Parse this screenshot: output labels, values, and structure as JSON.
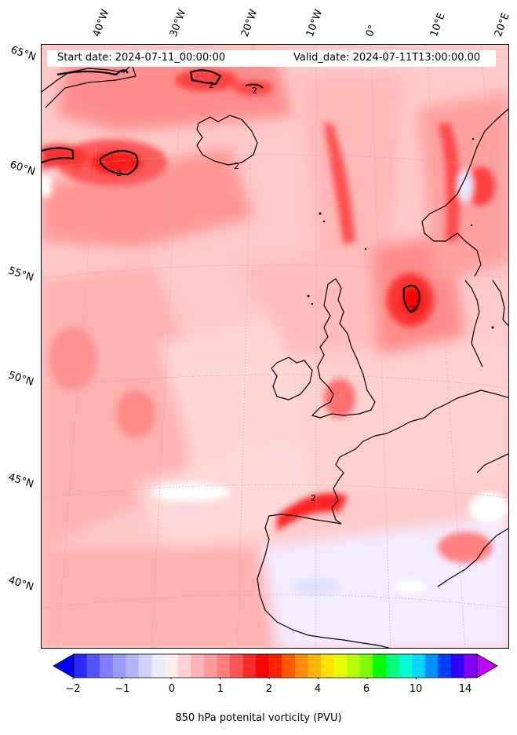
{
  "header": {
    "start_date": "Start date: 2024-07-11_00:00:00",
    "valid_date": "Valid_date: 2024-07-11T13:00:00.00"
  },
  "map": {
    "projection": "lambert-conformal",
    "extent": {
      "lon": [
        -45,
        20
      ],
      "lat": [
        36,
        66
      ]
    },
    "lat_labels": [
      "65°N",
      "60°N",
      "55°N",
      "50°N",
      "45°N",
      "40°N"
    ],
    "lon_labels": [
      "40°W",
      "30°W",
      "20°W",
      "10°W",
      "0°",
      "10°E",
      "20°E"
    ],
    "contour_label": "2",
    "coastline_color": "#000000"
  },
  "colorbar": {
    "label": "850 hPa potenital vorticity (PVU)",
    "tick_labels": [
      "−2",
      "−1",
      "0",
      "1",
      "2",
      "4",
      "6",
      "10",
      "14"
    ],
    "colors": [
      "#0000ff",
      "#2a2aff",
      "#5555ff",
      "#7f7fff",
      "#9a9aff",
      "#b5b5ff",
      "#d0d0ff",
      "#ececff",
      "#ffecec",
      "#ffd0d0",
      "#ffb5b5",
      "#ff9a9a",
      "#ff7f7f",
      "#ff5555",
      "#ff2a2a",
      "#ff0000",
      "#ff2400",
      "#ff5a00",
      "#ff8c00",
      "#ffb400",
      "#ffe000",
      "#e6ff00",
      "#b4ff00",
      "#78ff00",
      "#00ff00",
      "#00ff78",
      "#00ffd2",
      "#00d8ff",
      "#0090ff",
      "#0040ff",
      "#3000ff",
      "#8000ff",
      "#c000ff"
    ]
  }
}
